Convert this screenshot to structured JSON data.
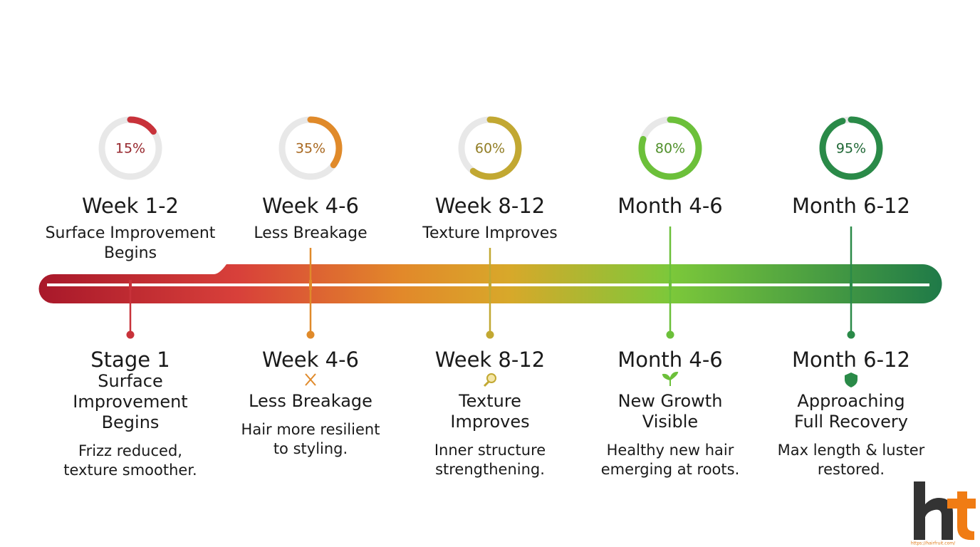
{
  "stages": [
    {
      "progress": {
        "value": 15,
        "label": "15%"
      },
      "top_title": "Week 1-2",
      "top_subtitle": [
        "Surface Improvement",
        "Begins"
      ],
      "bottom_title": "Stage 1",
      "bottom_subtitle": [
        "Surface",
        "Improvement",
        "Begins"
      ],
      "description": [
        "Frizz reduced,",
        "texture smoother."
      ],
      "color": "#c8323a"
    },
    {
      "progress": {
        "value": 35,
        "label": "35%"
      },
      "top_title": "Week 4-6",
      "top_subtitle": [
        "Less Breakage"
      ],
      "bottom_title": "Week 4-6",
      "bottom_subtitle": [
        "Less Breakage"
      ],
      "description": [
        "Hair more resilient",
        "to styling."
      ],
      "color": "#e08a2a"
    },
    {
      "progress": {
        "value": 60,
        "label": "60%"
      },
      "top_title": "Week 8-12",
      "top_subtitle": [
        "Texture Improves"
      ],
      "bottom_title": "Week 8-12",
      "bottom_subtitle": [
        "Texture",
        "Improves"
      ],
      "description": [
        "Inner structure",
        "strengthening."
      ],
      "color": "#c2a832"
    },
    {
      "progress": {
        "value": 80,
        "label": "80%"
      },
      "top_title": "Month 4-6",
      "top_subtitle": [],
      "bottom_title": "Month 4-6",
      "bottom_subtitle": [
        "New Growth",
        "Visible"
      ],
      "description": [
        "Healthy new hair",
        "emerging at roots."
      ],
      "color": "#6cc03a"
    },
    {
      "progress": {
        "value": 95,
        "label": "95%"
      },
      "top_title": "Month 6-12",
      "top_subtitle": [],
      "bottom_title": "Month 6-12",
      "bottom_subtitle": [
        "Approaching",
        "Full Recovery"
      ],
      "description": [
        "Max length & luster",
        "restored."
      ],
      "color": "#2a8a48"
    }
  ],
  "logo": {
    "url": "https://hairfruit.com/"
  }
}
